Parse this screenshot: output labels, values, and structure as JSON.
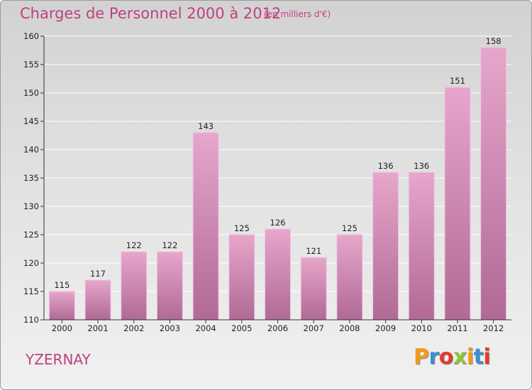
{
  "header": {
    "title": "Charges de Personnel 2000 à 2012",
    "subtitle": "(en milliers d'€)"
  },
  "footer": {
    "commune": "YZERNAY",
    "logo_text": "Proxiti"
  },
  "colors": {
    "title": "#c0407f",
    "bar_top": "#e7a6cc",
    "bar_bottom": "#b06a94",
    "bar_edge": "#f0c6de",
    "axis": "#333333",
    "grid": "#ffffff"
  },
  "chart_data": {
    "type": "bar",
    "categories": [
      "2000",
      "2001",
      "2002",
      "2003",
      "2004",
      "2005",
      "2006",
      "2007",
      "2008",
      "2009",
      "2010",
      "2011",
      "2012"
    ],
    "values": [
      115,
      117,
      122,
      122,
      143,
      125,
      126,
      121,
      125,
      136,
      136,
      151,
      158
    ],
    "title": "Charges de Personnel 2000 à 2012",
    "subtitle": "(en milliers d'€)",
    "ylim": [
      110,
      160
    ],
    "yticks": [
      110,
      115,
      120,
      125,
      130,
      135,
      140,
      145,
      150,
      155,
      160
    ],
    "grid": true,
    "data_labels": true
  }
}
